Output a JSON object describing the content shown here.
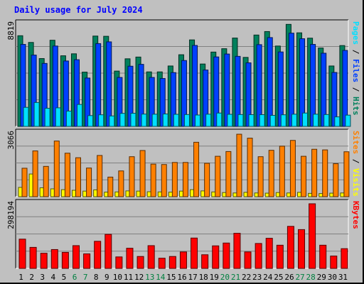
{
  "title": "Daily usage for July 2024",
  "colors": {
    "hits": "#00805c",
    "files": "#0040ff",
    "pages": "#00e0ff",
    "visits": "#ffff00",
    "sites": "#ff8000",
    "kbytes": "#ff0000",
    "weekend_label": "#008040",
    "day_label": "#000000"
  },
  "chart_data": [
    {
      "type": "bar",
      "panel": "hits-files-pages",
      "y_label_parts": [
        "Pages",
        "/",
        "Files",
        "/",
        "Hits"
      ],
      "y_tick_label": "8819",
      "ymax": 8819,
      "categories": [
        "1",
        "2",
        "3",
        "4",
        "5",
        "6",
        "7",
        "8",
        "9",
        "10",
        "11",
        "12",
        "13",
        "14",
        "15",
        "16",
        "17",
        "18",
        "19",
        "20",
        "21",
        "22",
        "23",
        "24",
        "25",
        "26",
        "27",
        "28",
        "29",
        "30",
        "31"
      ],
      "weekend_days": [
        "6",
        "7",
        "13",
        "14",
        "20",
        "21",
        "27",
        "28"
      ],
      "series": [
        {
          "name": "Hits",
          "values": [
            7820,
            7240,
            5850,
            7430,
            6090,
            6260,
            4680,
            7790,
            7770,
            4770,
            5830,
            5980,
            4700,
            4700,
            5210,
            6180,
            7460,
            5380,
            6410,
            6700,
            7620,
            5950,
            7880,
            8180,
            6930,
            8800,
            8070,
            7610,
            6760,
            5210,
            6970
          ]
        },
        {
          "name": "Files",
          "values": [
            7070,
            6150,
            5430,
            6930,
            5640,
            5750,
            4170,
            7140,
            7290,
            4220,
            5190,
            5350,
            4220,
            4130,
            4640,
            5680,
            6980,
            4860,
            5990,
            6240,
            6040,
            5480,
            7050,
            7660,
            6420,
            8040,
            7560,
            7070,
            6310,
            4650,
            6550
          ]
        },
        {
          "name": "Pages",
          "values": [
            1640,
            2060,
            1560,
            1600,
            1320,
            1890,
            930,
            1000,
            900,
            1120,
            1130,
            1060,
            1050,
            1070,
            1040,
            1020,
            980,
            1050,
            1150,
            1040,
            1020,
            1010,
            1010,
            950,
            1000,
            1050,
            1150,
            1050,
            1020,
            820,
            970
          ]
        }
      ]
    },
    {
      "type": "bar",
      "panel": "sites-visits",
      "y_label_parts": [
        "Sites",
        "/",
        "Visits"
      ],
      "y_tick_label": "3066",
      "ymax": 3066,
      "categories": [
        "1",
        "2",
        "3",
        "4",
        "5",
        "6",
        "7",
        "8",
        "9",
        "10",
        "11",
        "12",
        "13",
        "14",
        "15",
        "16",
        "17",
        "18",
        "19",
        "20",
        "21",
        "22",
        "23",
        "24",
        "25",
        "26",
        "27",
        "28",
        "29",
        "30",
        "31"
      ],
      "series": [
        {
          "name": "Visits",
          "values": [
            450,
            1100,
            430,
            380,
            340,
            310,
            270,
            330,
            220,
            230,
            280,
            270,
            240,
            230,
            220,
            270,
            340,
            280,
            230,
            200,
            180,
            210,
            180,
            170,
            200,
            180,
            210,
            160,
            150,
            170,
            180
          ]
        },
        {
          "name": "Sites",
          "values": [
            1380,
            2220,
            1470,
            2700,
            2110,
            1890,
            1390,
            2000,
            950,
            1250,
            1940,
            2240,
            1580,
            1560,
            1660,
            1660,
            2640,
            1620,
            1960,
            2190,
            3030,
            2840,
            1940,
            2250,
            2450,
            2730,
            1960,
            2300,
            2270,
            1600,
            2180
          ]
        }
      ]
    },
    {
      "type": "bar",
      "panel": "kbytes",
      "y_label_parts": [
        "KBytes"
      ],
      "y_tick_label": "298194",
      "ymax": 298194,
      "categories": [
        "1",
        "2",
        "3",
        "4",
        "5",
        "6",
        "7",
        "8",
        "9",
        "10",
        "11",
        "12",
        "13",
        "14",
        "15",
        "16",
        "17",
        "18",
        "19",
        "20",
        "21",
        "22",
        "23",
        "24",
        "25",
        "26",
        "27",
        "28",
        "29",
        "30",
        "31"
      ],
      "series": [
        {
          "name": "KBytes",
          "values": [
            135000,
            97000,
            70000,
            87000,
            74000,
            105000,
            67000,
            125000,
            157000,
            53000,
            93000,
            55000,
            105000,
            47000,
            55000,
            76000,
            140000,
            63000,
            104000,
            117000,
            162000,
            76000,
            115000,
            139000,
            107000,
            194000,
            179000,
            298194,
            107000,
            57000,
            91000
          ]
        }
      ]
    }
  ]
}
